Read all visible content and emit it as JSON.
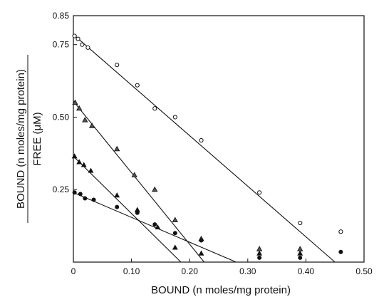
{
  "chart_data": {
    "type": "scatter",
    "title": "",
    "xlabel": "BOUND (n moles/mg protein)",
    "ylabel_numerator": "BOUND (n moles/mg protein)",
    "ylabel_denominator": "FREE (μM)",
    "xlim": [
      0,
      0.5
    ],
    "ylim": [
      0,
      0.85
    ],
    "x_ticks": [
      {
        "value": 0,
        "label": "0"
      },
      {
        "value": 0.1,
        "label": "0.10"
      },
      {
        "value": 0.2,
        "label": "0.20"
      },
      {
        "value": 0.3,
        "label": "0.30"
      },
      {
        "value": 0.4,
        "label": "0.40"
      },
      {
        "value": 0.5,
        "label": "0.50"
      }
    ],
    "y_ticks": [
      {
        "value": 0.25,
        "label": "0.25"
      },
      {
        "value": 0.5,
        "label": "0.50"
      },
      {
        "value": 0.75,
        "label": "0.75"
      },
      {
        "value": 0.85,
        "label": "0.85"
      }
    ],
    "grid": false,
    "series": [
      {
        "marker": "open-circle",
        "points": [
          [
            0.002,
            0.78
          ],
          [
            0.008,
            0.77
          ],
          [
            0.015,
            0.75
          ],
          [
            0.025,
            0.74
          ],
          [
            0.075,
            0.68
          ],
          [
            0.11,
            0.61
          ],
          [
            0.14,
            0.53
          ],
          [
            0.175,
            0.5
          ],
          [
            0.22,
            0.42
          ],
          [
            0.32,
            0.24
          ],
          [
            0.39,
            0.135
          ],
          [
            0.46,
            0.105
          ]
        ],
        "fit": {
          "x_start": 0,
          "y_start": 0.785,
          "x_end": 0.45,
          "y_end": 0
        }
      },
      {
        "marker": "half-filled-triangle",
        "points": [
          [
            0.003,
            0.55
          ],
          [
            0.01,
            0.53
          ],
          [
            0.02,
            0.49
          ],
          [
            0.032,
            0.47
          ],
          [
            0.075,
            0.39
          ],
          [
            0.105,
            0.3
          ],
          [
            0.14,
            0.25
          ],
          [
            0.175,
            0.145
          ],
          [
            0.22,
            0.08
          ],
          [
            0.32,
            0.045
          ],
          [
            0.39,
            0.045
          ]
        ],
        "fit": {
          "x_start": 0,
          "y_start": 0.555,
          "x_end": 0.225,
          "y_end": 0
        }
      },
      {
        "marker": "filled-triangle",
        "points": [
          [
            0.002,
            0.365
          ],
          [
            0.01,
            0.345
          ],
          [
            0.018,
            0.335
          ],
          [
            0.03,
            0.315
          ],
          [
            0.075,
            0.23
          ],
          [
            0.11,
            0.18
          ],
          [
            0.145,
            0.12
          ],
          [
            0.175,
            0.05
          ],
          [
            0.22,
            0.03
          ],
          [
            0.32,
            0.03
          ],
          [
            0.39,
            0.03
          ]
        ],
        "fit": {
          "x_start": 0,
          "y_start": 0.365,
          "x_end": 0.185,
          "y_end": 0
        }
      },
      {
        "marker": "filled-circle",
        "points": [
          [
            0.002,
            0.24
          ],
          [
            0.012,
            0.235
          ],
          [
            0.02,
            0.22
          ],
          [
            0.035,
            0.215
          ],
          [
            0.075,
            0.19
          ],
          [
            0.11,
            0.17
          ],
          [
            0.14,
            0.13
          ],
          [
            0.175,
            0.1
          ],
          [
            0.22,
            0.075
          ],
          [
            0.32,
            0.015
          ],
          [
            0.39,
            0.015
          ],
          [
            0.46,
            0.035
          ]
        ],
        "fit": {
          "x_start": 0,
          "y_start": 0.24,
          "x_end": 0.28,
          "y_end": 0
        }
      }
    ]
  }
}
